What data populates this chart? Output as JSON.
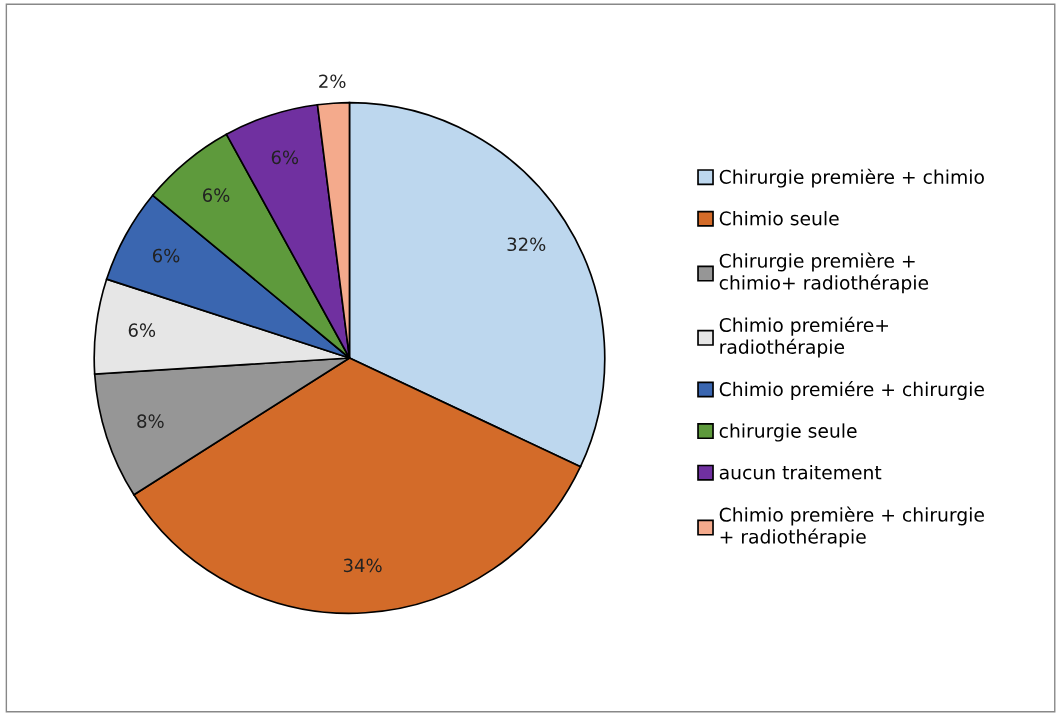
{
  "chart_data": {
    "type": "pie",
    "categories": [
      "Chirurgie première + chimio",
      "Chimio seule",
      "Chirurgie première + chimio+ radiothérapie",
      "Chimio premiére+ radiothérapie",
      "Chimio premiére + chirurgie",
      "chirurgie seule",
      "aucun traitement",
      "Chimio première + chirurgie + radiothérapie"
    ],
    "values": [
      32,
      34,
      8,
      6,
      6,
      6,
      6,
      2
    ],
    "value_labels": [
      "32%",
      "34%",
      "8%",
      "6%",
      "6%",
      "6%",
      "6%",
      "2%"
    ],
    "colors": [
      "#bdd7ee",
      "#d36b29",
      "#969696",
      "#e6e6e6",
      "#3a66b0",
      "#5e9a3c",
      "#7030a0",
      "#f4aa8c"
    ],
    "legend": "right"
  }
}
